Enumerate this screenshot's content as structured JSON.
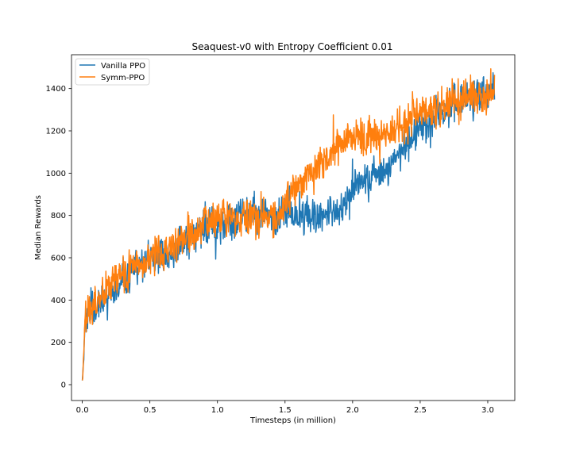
{
  "chart_data": {
    "type": "line",
    "title": "Seaquest-v0 with Entropy Coefficient 0.01",
    "xlabel": "Timesteps (in million)",
    "ylabel": "Median Rewards",
    "xlim": [
      -0.08,
      3.2
    ],
    "ylim": [
      -75,
      1560
    ],
    "xticks": [
      0.0,
      0.5,
      1.0,
      1.5,
      2.0,
      2.5,
      3.0
    ],
    "xtick_labels": [
      "0.0",
      "0.5",
      "1.0",
      "1.5",
      "2.0",
      "2.5",
      "3.0"
    ],
    "yticks": [
      0,
      200,
      400,
      600,
      800,
      1000,
      1200,
      1400
    ],
    "ytick_labels": [
      "0",
      "200",
      "400",
      "600",
      "800",
      "1000",
      "1200",
      "1400"
    ],
    "grid": false,
    "legend_position": "top-left",
    "series": [
      {
        "name": "Vanilla PPO",
        "color": "#1f77b4",
        "noise": 55,
        "seed": 7,
        "points": [
          [
            0.0,
            20
          ],
          [
            0.01,
            120
          ],
          [
            0.02,
            280
          ],
          [
            0.05,
            340
          ],
          [
            0.1,
            360
          ],
          [
            0.15,
            400
          ],
          [
            0.2,
            440
          ],
          [
            0.3,
            510
          ],
          [
            0.4,
            560
          ],
          [
            0.5,
            580
          ],
          [
            0.6,
            610
          ],
          [
            0.7,
            650
          ],
          [
            0.8,
            700
          ],
          [
            0.9,
            740
          ],
          [
            1.0,
            760
          ],
          [
            1.1,
            775
          ],
          [
            1.2,
            790
          ],
          [
            1.3,
            800
          ],
          [
            1.4,
            805
          ],
          [
            1.5,
            805
          ],
          [
            1.6,
            810
          ],
          [
            1.7,
            800
          ],
          [
            1.8,
            810
          ],
          [
            1.9,
            830
          ],
          [
            1.95,
            870
          ],
          [
            2.0,
            930
          ],
          [
            2.1,
            960
          ],
          [
            2.2,
            1000
          ],
          [
            2.3,
            1060
          ],
          [
            2.4,
            1150
          ],
          [
            2.5,
            1230
          ],
          [
            2.6,
            1270
          ],
          [
            2.7,
            1300
          ],
          [
            2.8,
            1340
          ],
          [
            2.9,
            1360
          ],
          [
            3.0,
            1380
          ],
          [
            3.05,
            1400
          ]
        ]
      },
      {
        "name": "Symm-PPO",
        "color": "#ff7f0e",
        "noise": 60,
        "seed": 42,
        "points": [
          [
            0.0,
            20
          ],
          [
            0.01,
            150
          ],
          [
            0.02,
            300
          ],
          [
            0.05,
            350
          ],
          [
            0.1,
            380
          ],
          [
            0.15,
            420
          ],
          [
            0.2,
            460
          ],
          [
            0.3,
            520
          ],
          [
            0.4,
            580
          ],
          [
            0.5,
            600
          ],
          [
            0.6,
            620
          ],
          [
            0.7,
            660
          ],
          [
            0.8,
            710
          ],
          [
            0.9,
            750
          ],
          [
            1.0,
            770
          ],
          [
            1.1,
            780
          ],
          [
            1.2,
            790
          ],
          [
            1.3,
            795
          ],
          [
            1.4,
            780
          ],
          [
            1.45,
            790
          ],
          [
            1.5,
            860
          ],
          [
            1.6,
            950
          ],
          [
            1.7,
            1000
          ],
          [
            1.8,
            1050
          ],
          [
            1.9,
            1150
          ],
          [
            2.0,
            1180
          ],
          [
            2.1,
            1150
          ],
          [
            2.2,
            1180
          ],
          [
            2.3,
            1200
          ],
          [
            2.4,
            1250
          ],
          [
            2.5,
            1290
          ],
          [
            2.6,
            1310
          ],
          [
            2.7,
            1330
          ],
          [
            2.8,
            1350
          ],
          [
            2.9,
            1370
          ],
          [
            3.0,
            1350
          ],
          [
            3.05,
            1380
          ]
        ]
      }
    ]
  }
}
